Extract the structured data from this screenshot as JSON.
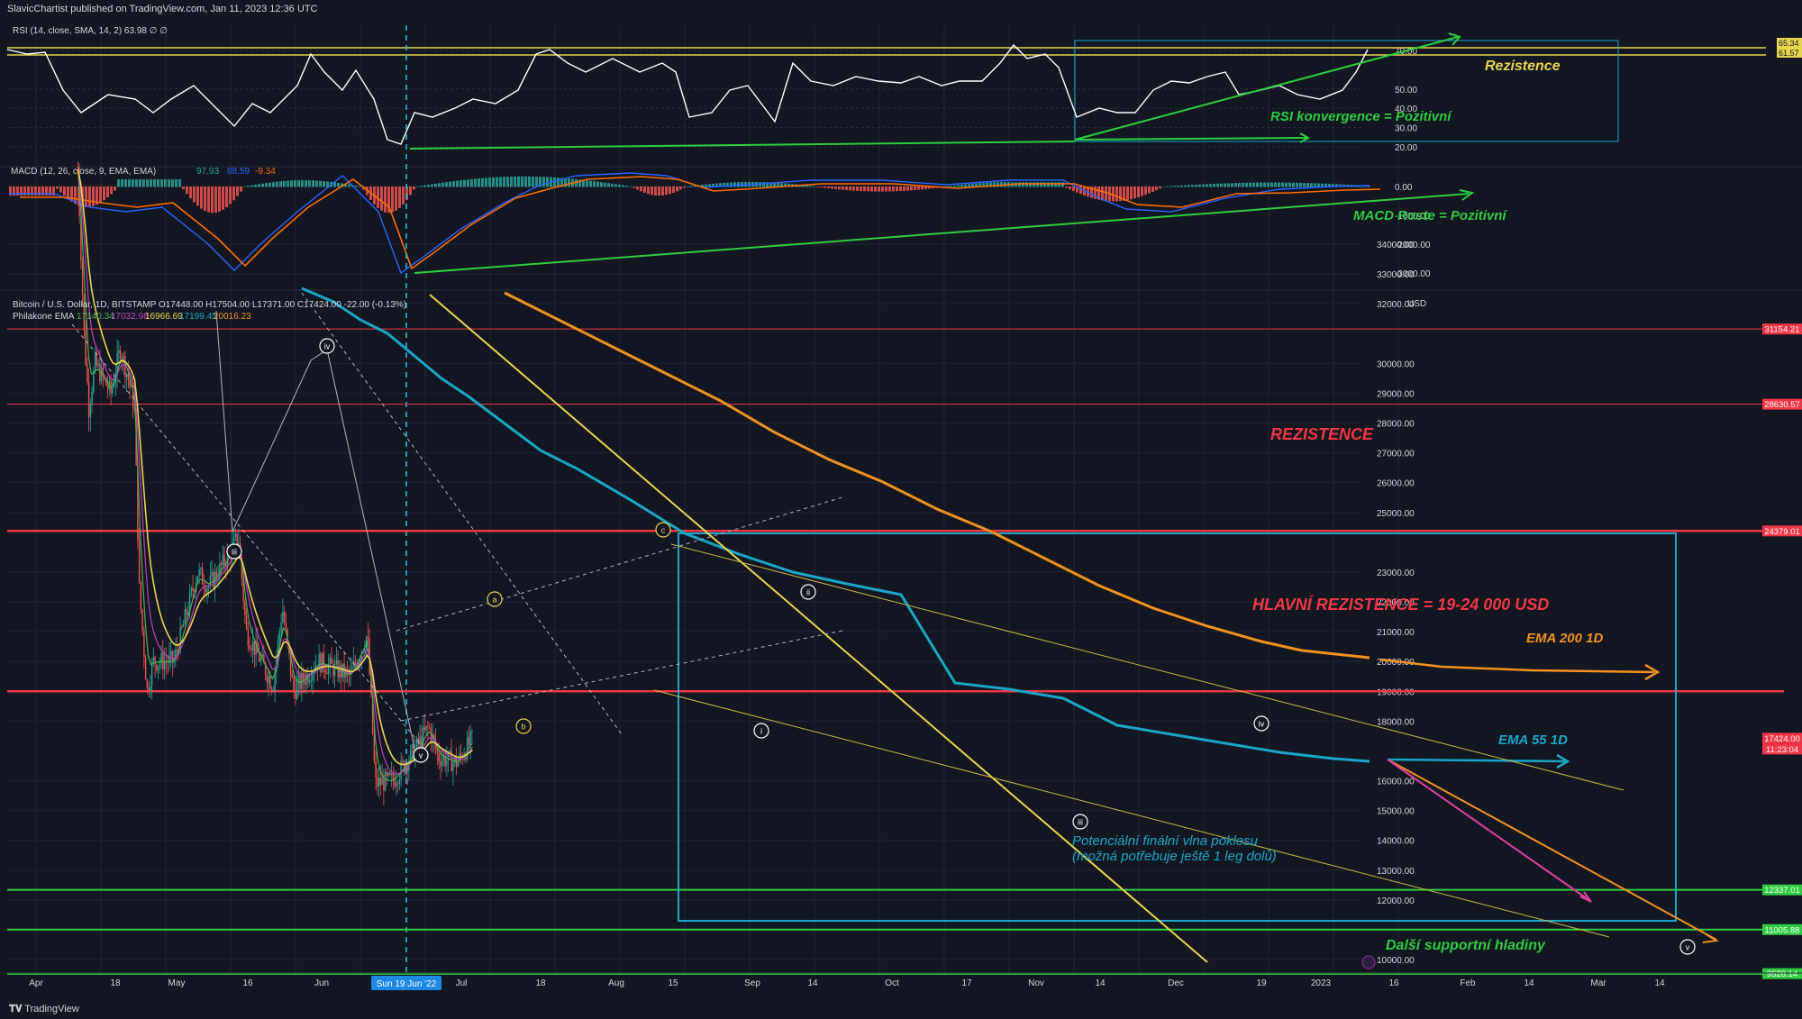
{
  "header": {
    "published": "SlavicChartist published on TradingView.com, Jan 11, 2023 12:36 UTC"
  },
  "footer": {
    "brand": "TradingView"
  },
  "colors": {
    "bg": "#131722",
    "grid": "#1f2433",
    "bull": "#26a69a",
    "bear": "#ef5350",
    "ema_green": "#4caf50",
    "ema_purple": "#c040c0",
    "ema_yellow": "#e8d44d",
    "ema_cyan": "#18a6c8",
    "ema_orange": "#f2911e",
    "red_line": "#f23645",
    "green_line": "#2ecc40",
    "macd_line": "#2962ff",
    "signal_line": "#ff6d00"
  },
  "rsi": {
    "legend": "RSI (14, close, SMA, 14, 2)",
    "value": "63.98",
    "ticks": [
      "70.00",
      "50.00",
      "40.00",
      "30.00",
      "20.00"
    ],
    "tags": [
      "65.34",
      "61.57"
    ],
    "annotations": [
      "Rezistence",
      "RSI konvergence = Pozitivní"
    ]
  },
  "macd": {
    "legend": "MACD (12, 26, close, 9, EMA, EMA)",
    "v1": "97.93",
    "v2": "88.59",
    "v3": "-9.34",
    "ticks": [
      "0.00",
      "-1000.00",
      "-2000.00",
      "-3000.00"
    ],
    "annotation": "MACD Roste = Pozitivní"
  },
  "price": {
    "legend": "Bitcoin / U.S. Dollar, 1D, BITSTAMP",
    "ohlc": "O17448.00 H17504.00 L17371.00 C17424.00 -22.00 (-0.13%)",
    "ema_legend": "Philakone EMA",
    "ema_values": [
      "17140.34",
      "17032.98",
      "16966.69",
      "17199.45",
      "20016.23"
    ],
    "currency": "USD",
    "ticks": [
      "34000.00",
      "33000.00",
      "32000.00",
      "30000.00",
      "29000.00",
      "28000.00",
      "27000.00",
      "26000.00",
      "25000.00",
      "23000.00",
      "22000.00",
      "21000.00",
      "20000.00",
      "19000.00",
      "18000.00",
      "16000.00",
      "15000.00",
      "14000.00",
      "13000.00",
      "12000.00",
      "10000.00"
    ],
    "tags": [
      {
        "label": "31154.21",
        "color": "#f23645",
        "v": 31154
      },
      {
        "label": "28630.57",
        "color": "#f23645",
        "v": 28630
      },
      {
        "label": "24379.01",
        "color": "#f23645",
        "v": 24379
      },
      {
        "label": "17424.00",
        "color": "#f23645",
        "v": 17424
      },
      {
        "label": "11:23:04",
        "color": "#f23645",
        "v": 17424
      },
      {
        "label": "12337.01",
        "color": "#2ecc40",
        "v": 12337
      },
      {
        "label": "11005.88",
        "color": "#2ecc40",
        "v": 11005
      },
      {
        "label": "9528.14",
        "color": "#2ecc40",
        "v": 9528
      }
    ],
    "annotations": {
      "rez": "REZISTENCE",
      "main_rez": "HLAVNÍ REZISTENCE = 19-24 000 USD",
      "ema200": "EMA 200 1D",
      "ema55": "EMA 55 1D",
      "wave1": "Potenciální finální vlna poklesu",
      "wave2": "(možná potřebuje ještě 1 leg dolů)",
      "support": "Další supportní hladiny"
    },
    "waves": [
      "iii",
      "iv",
      "v",
      "a",
      "b",
      "c",
      "i",
      "ii",
      "iii",
      "iv",
      "v"
    ]
  },
  "xaxis": {
    "ticks": [
      "Apr",
      "18",
      "May",
      "16",
      "Jun",
      "Jul",
      "18",
      "Aug",
      "15",
      "Sep",
      "14",
      "Oct",
      "17",
      "Nov",
      "14",
      "Dec",
      "19",
      "2023",
      "16",
      "Feb",
      "14",
      "Mar",
      "14"
    ],
    "highlight": "Sun 19 Jun '22"
  },
  "chart_data": {
    "type": "candlestick",
    "title": "Bitcoin / U.S. Dollar, 1D, BITSTAMP",
    "ylabel": "USD",
    "ylim": [
      9000,
      34500
    ],
    "x_range": [
      "2022-03-28",
      "2023-03-24"
    ],
    "last_close": 17424,
    "series_path": [
      [
        "2022-05-05",
        36500
      ],
      [
        "2022-05-09",
        31000
      ],
      [
        "2022-05-12",
        28500
      ],
      [
        "2022-05-16",
        30000
      ],
      [
        "2022-05-26",
        29000
      ],
      [
        "2022-06-01",
        30500
      ],
      [
        "2022-06-06",
        29500
      ],
      [
        "2022-06-10",
        28500
      ],
      [
        "2022-06-13",
        22500
      ],
      [
        "2022-06-18",
        19000
      ],
      [
        "2022-06-22",
        20000
      ],
      [
        "2022-07-05",
        20000
      ],
      [
        "2022-07-20",
        23000
      ],
      [
        "2022-07-27",
        22500
      ],
      [
        "2022-08-08",
        23500
      ],
      [
        "2022-08-15",
        24200
      ],
      [
        "2022-08-20",
        21000
      ],
      [
        "2022-09-06",
        19200
      ],
      [
        "2022-09-12",
        21800
      ],
      [
        "2022-09-19",
        19000
      ],
      [
        "2022-10-05",
        20000
      ],
      [
        "2022-10-25",
        19500
      ],
      [
        "2022-11-05",
        20900
      ],
      [
        "2022-11-08",
        18000
      ],
      [
        "2022-11-10",
        15900
      ],
      [
        "2022-11-21",
        16000
      ],
      [
        "2022-12-05",
        17000
      ],
      [
        "2022-12-14",
        17800
      ],
      [
        "2022-12-20",
        16800
      ],
      [
        "2023-01-01",
        16600
      ],
      [
        "2023-01-11",
        17424
      ]
    ],
    "horizontal_levels": [
      31154.21,
      28630.57,
      24379.01,
      19000,
      12337.01,
      11005.88,
      9528.14
    ],
    "ema_200_end": 20016.23,
    "rsi_last": 63.98,
    "macd_last": [
      97.93,
      88.59,
      -9.34
    ]
  }
}
